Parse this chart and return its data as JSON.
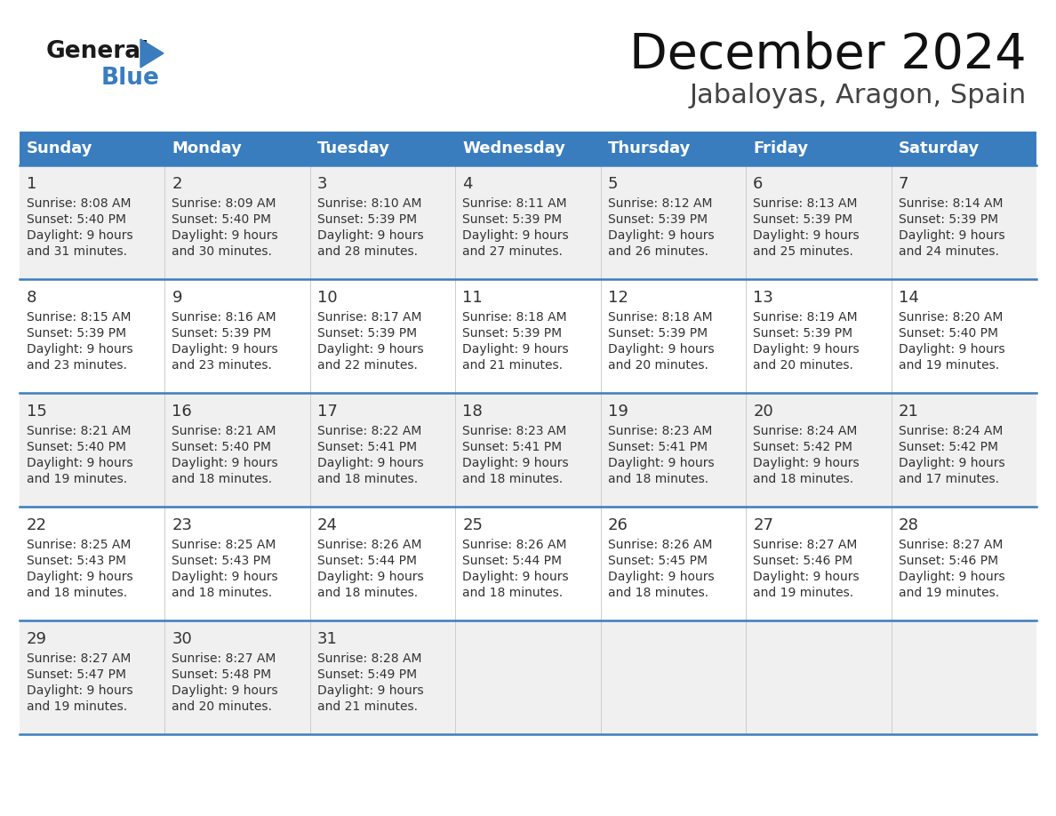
{
  "title": "December 2024",
  "subtitle": "Jabaloyas, Aragon, Spain",
  "days_of_week": [
    "Sunday",
    "Monday",
    "Tuesday",
    "Wednesday",
    "Thursday",
    "Friday",
    "Saturday"
  ],
  "header_bg": "#3a7dbf",
  "header_text": "#ffffff",
  "row_bg_odd": "#f0f0f0",
  "row_bg_even": "#ffffff",
  "cell_text_color": "#333333",
  "day_num_color": "#333333",
  "border_color": "#3a7dbf",
  "cell_line_color": "#aaaaaa",
  "calendar_data": [
    [
      {
        "day": 1,
        "sunrise": "8:08 AM",
        "sunset": "5:40 PM",
        "daylight_hours": 9,
        "daylight_minutes": 31
      },
      {
        "day": 2,
        "sunrise": "8:09 AM",
        "sunset": "5:40 PM",
        "daylight_hours": 9,
        "daylight_minutes": 30
      },
      {
        "day": 3,
        "sunrise": "8:10 AM",
        "sunset": "5:39 PM",
        "daylight_hours": 9,
        "daylight_minutes": 28
      },
      {
        "day": 4,
        "sunrise": "8:11 AM",
        "sunset": "5:39 PM",
        "daylight_hours": 9,
        "daylight_minutes": 27
      },
      {
        "day": 5,
        "sunrise": "8:12 AM",
        "sunset": "5:39 PM",
        "daylight_hours": 9,
        "daylight_minutes": 26
      },
      {
        "day": 6,
        "sunrise": "8:13 AM",
        "sunset": "5:39 PM",
        "daylight_hours": 9,
        "daylight_minutes": 25
      },
      {
        "day": 7,
        "sunrise": "8:14 AM",
        "sunset": "5:39 PM",
        "daylight_hours": 9,
        "daylight_minutes": 24
      }
    ],
    [
      {
        "day": 8,
        "sunrise": "8:15 AM",
        "sunset": "5:39 PM",
        "daylight_hours": 9,
        "daylight_minutes": 23
      },
      {
        "day": 9,
        "sunrise": "8:16 AM",
        "sunset": "5:39 PM",
        "daylight_hours": 9,
        "daylight_minutes": 23
      },
      {
        "day": 10,
        "sunrise": "8:17 AM",
        "sunset": "5:39 PM",
        "daylight_hours": 9,
        "daylight_minutes": 22
      },
      {
        "day": 11,
        "sunrise": "8:18 AM",
        "sunset": "5:39 PM",
        "daylight_hours": 9,
        "daylight_minutes": 21
      },
      {
        "day": 12,
        "sunrise": "8:18 AM",
        "sunset": "5:39 PM",
        "daylight_hours": 9,
        "daylight_minutes": 20
      },
      {
        "day": 13,
        "sunrise": "8:19 AM",
        "sunset": "5:39 PM",
        "daylight_hours": 9,
        "daylight_minutes": 20
      },
      {
        "day": 14,
        "sunrise": "8:20 AM",
        "sunset": "5:40 PM",
        "daylight_hours": 9,
        "daylight_minutes": 19
      }
    ],
    [
      {
        "day": 15,
        "sunrise": "8:21 AM",
        "sunset": "5:40 PM",
        "daylight_hours": 9,
        "daylight_minutes": 19
      },
      {
        "day": 16,
        "sunrise": "8:21 AM",
        "sunset": "5:40 PM",
        "daylight_hours": 9,
        "daylight_minutes": 18
      },
      {
        "day": 17,
        "sunrise": "8:22 AM",
        "sunset": "5:41 PM",
        "daylight_hours": 9,
        "daylight_minutes": 18
      },
      {
        "day": 18,
        "sunrise": "8:23 AM",
        "sunset": "5:41 PM",
        "daylight_hours": 9,
        "daylight_minutes": 18
      },
      {
        "day": 19,
        "sunrise": "8:23 AM",
        "sunset": "5:41 PM",
        "daylight_hours": 9,
        "daylight_minutes": 18
      },
      {
        "day": 20,
        "sunrise": "8:24 AM",
        "sunset": "5:42 PM",
        "daylight_hours": 9,
        "daylight_minutes": 18
      },
      {
        "day": 21,
        "sunrise": "8:24 AM",
        "sunset": "5:42 PM",
        "daylight_hours": 9,
        "daylight_minutes": 17
      }
    ],
    [
      {
        "day": 22,
        "sunrise": "8:25 AM",
        "sunset": "5:43 PM",
        "daylight_hours": 9,
        "daylight_minutes": 18
      },
      {
        "day": 23,
        "sunrise": "8:25 AM",
        "sunset": "5:43 PM",
        "daylight_hours": 9,
        "daylight_minutes": 18
      },
      {
        "day": 24,
        "sunrise": "8:26 AM",
        "sunset": "5:44 PM",
        "daylight_hours": 9,
        "daylight_minutes": 18
      },
      {
        "day": 25,
        "sunrise": "8:26 AM",
        "sunset": "5:44 PM",
        "daylight_hours": 9,
        "daylight_minutes": 18
      },
      {
        "day": 26,
        "sunrise": "8:26 AM",
        "sunset": "5:45 PM",
        "daylight_hours": 9,
        "daylight_minutes": 18
      },
      {
        "day": 27,
        "sunrise": "8:27 AM",
        "sunset": "5:46 PM",
        "daylight_hours": 9,
        "daylight_minutes": 19
      },
      {
        "day": 28,
        "sunrise": "8:27 AM",
        "sunset": "5:46 PM",
        "daylight_hours": 9,
        "daylight_minutes": 19
      }
    ],
    [
      {
        "day": 29,
        "sunrise": "8:27 AM",
        "sunset": "5:47 PM",
        "daylight_hours": 9,
        "daylight_minutes": 19
      },
      {
        "day": 30,
        "sunrise": "8:27 AM",
        "sunset": "5:48 PM",
        "daylight_hours": 9,
        "daylight_minutes": 20
      },
      {
        "day": 31,
        "sunrise": "8:28 AM",
        "sunset": "5:49 PM",
        "daylight_hours": 9,
        "daylight_minutes": 21
      },
      null,
      null,
      null,
      null
    ]
  ],
  "logo_general_color": "#1a1a1a",
  "logo_blue_color": "#3a7dbf",
  "figsize": [
    11.88,
    9.18
  ],
  "dpi": 100
}
